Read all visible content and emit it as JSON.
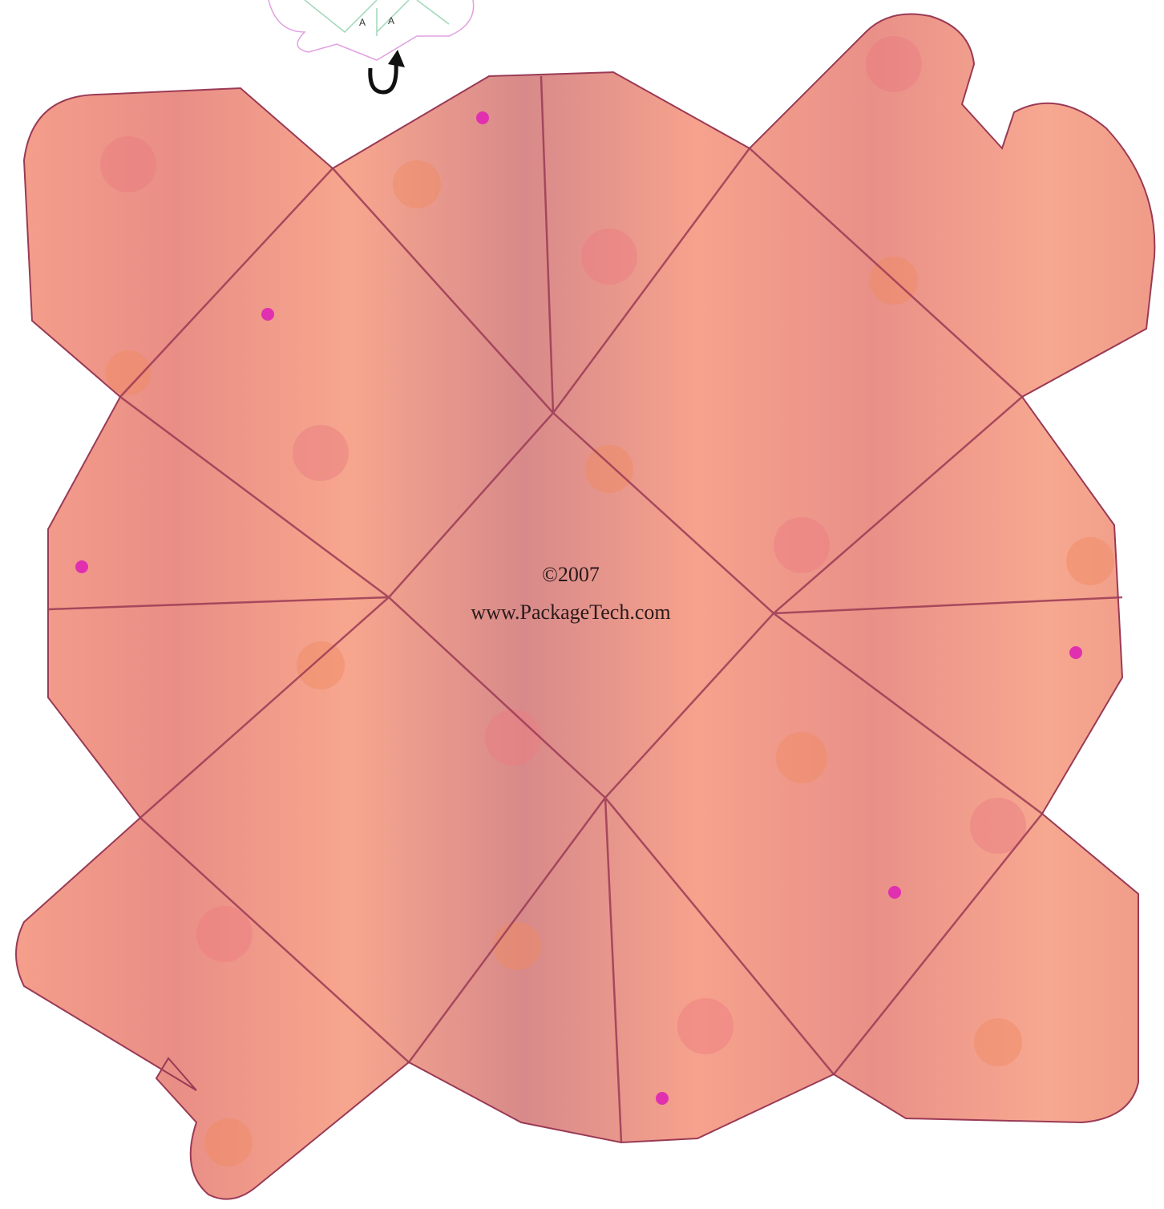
{
  "top_marks": [
    "A",
    "A"
  ],
  "copyright": "©2007",
  "website": "www.PackageTech.com"
}
